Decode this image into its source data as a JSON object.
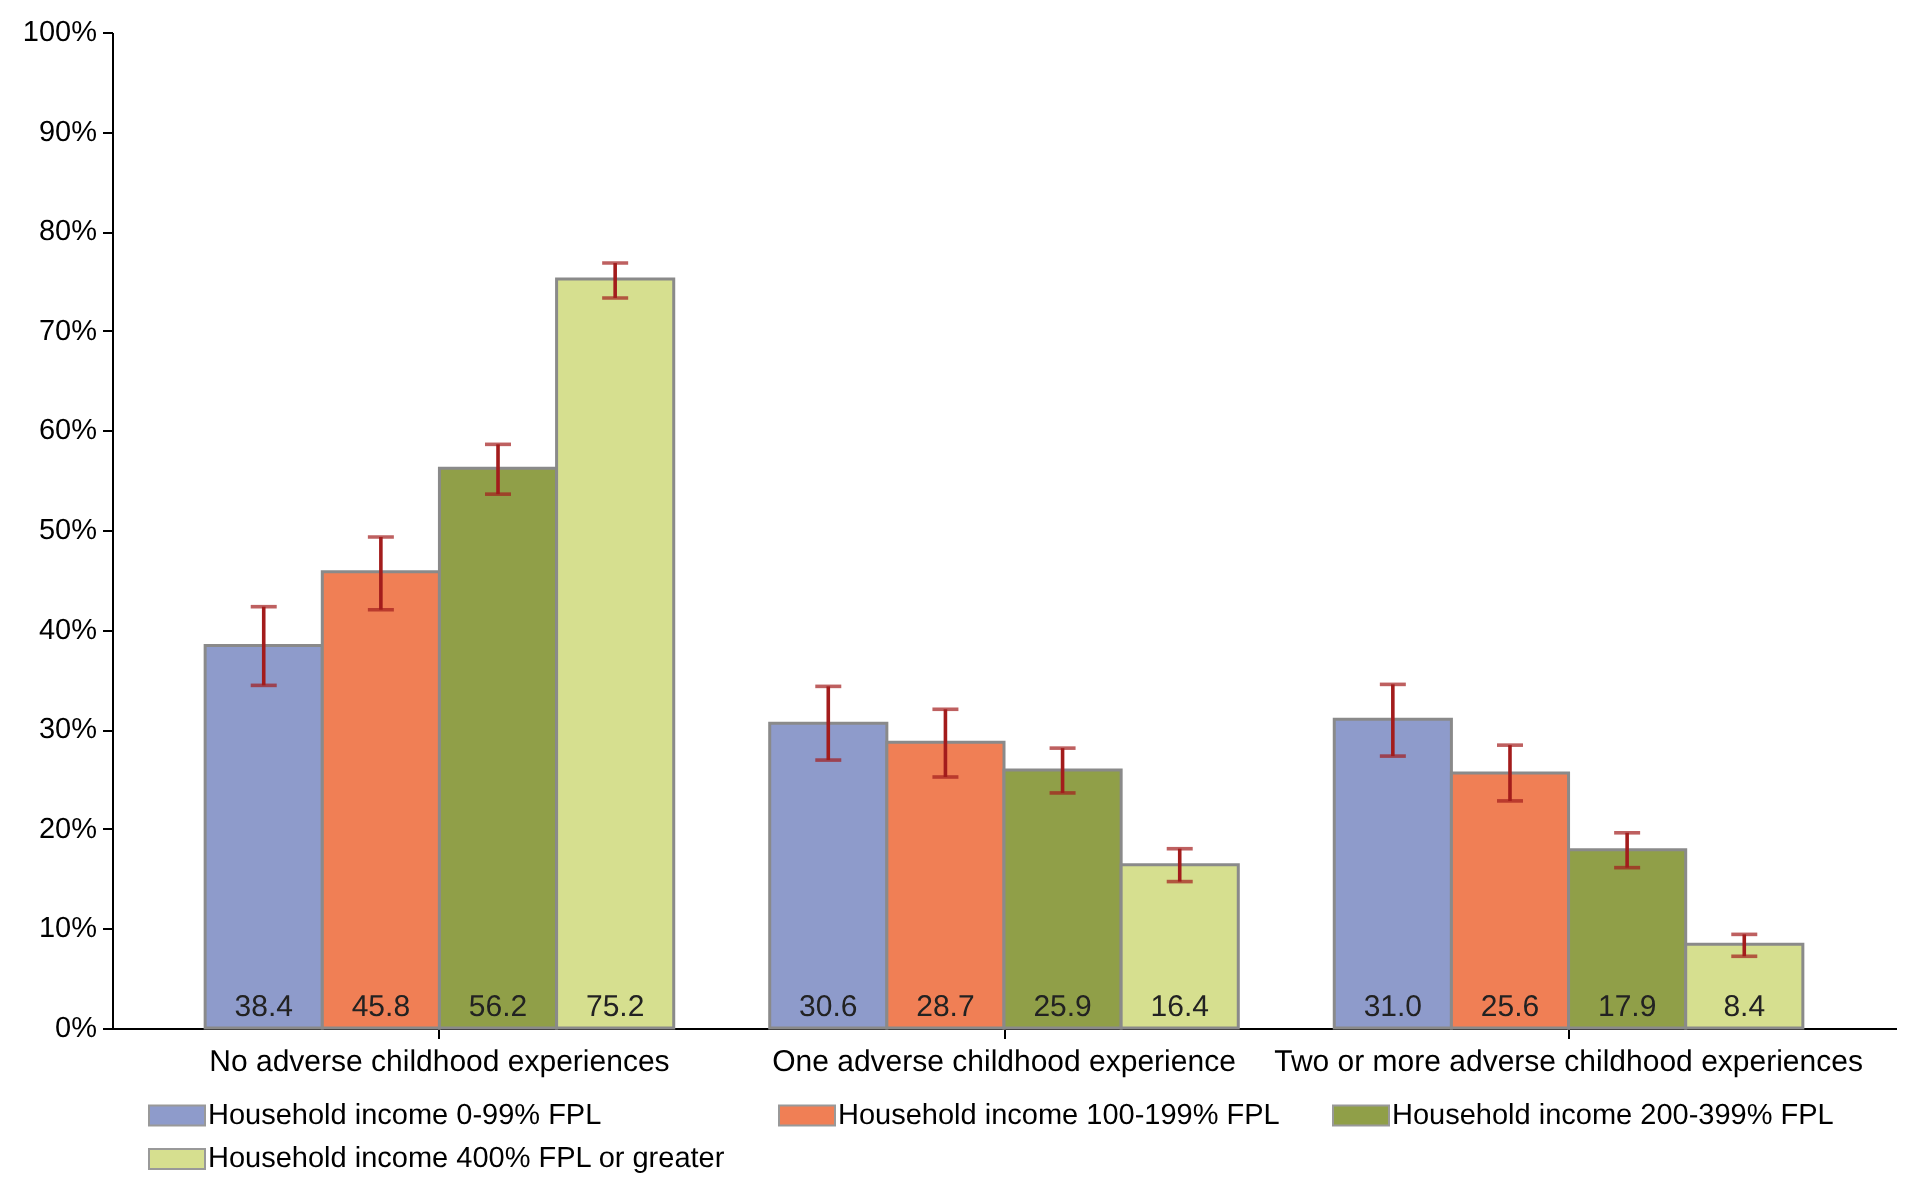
{
  "chart_data": {
    "type": "bar",
    "categories": [
      "No adverse childhood experiences",
      "One adverse childhood experience",
      "Two or more adverse childhood experiences"
    ],
    "series": [
      {
        "name": "Household income 0-99% FPL",
        "color": "#8e9bcb",
        "values": [
          38.4,
          30.6,
          31.0
        ],
        "value_labels": [
          "38.4",
          "30.6",
          "31.0"
        ],
        "errors": [
          [
            34.4,
            42.3
          ],
          [
            26.9,
            34.3
          ],
          [
            27.3,
            34.5
          ]
        ]
      },
      {
        "name": "Household income 100-199% FPL",
        "color": "#f07f55",
        "values": [
          45.8,
          28.7,
          25.6
        ],
        "value_labels": [
          "45.8",
          "28.7",
          "25.6"
        ],
        "errors": [
          [
            42.0,
            49.3
          ],
          [
            25.2,
            32.0
          ],
          [
            22.8,
            28.4
          ]
        ]
      },
      {
        "name": "Household income 200-399% FPL",
        "color": "#909f48",
        "values": [
          56.2,
          25.9,
          17.9
        ],
        "value_labels": [
          "56.2",
          "25.9",
          "17.9"
        ],
        "errors": [
          [
            53.6,
            58.6
          ],
          [
            23.6,
            28.1
          ],
          [
            16.1,
            19.6
          ]
        ]
      },
      {
        "name": "Household income 400% FPL or greater",
        "color": "#d6df8f",
        "values": [
          75.2,
          16.4,
          8.4
        ],
        "value_labels": [
          "75.2",
          "16.4",
          "8.4"
        ],
        "errors": [
          [
            73.3,
            76.8
          ],
          [
            14.7,
            18.0
          ],
          [
            7.2,
            9.4
          ]
        ]
      }
    ],
    "ylim": [
      0,
      100
    ],
    "yticks": [
      {
        "value": 0,
        "label": "0%"
      },
      {
        "value": 10,
        "label": "10%"
      },
      {
        "value": 20,
        "label": "20%"
      },
      {
        "value": 30,
        "label": "30%"
      },
      {
        "value": 40,
        "label": "40%"
      },
      {
        "value": 50,
        "label": "50%"
      },
      {
        "value": 60,
        "label": "60%"
      },
      {
        "value": 70,
        "label": "70%"
      },
      {
        "value": 80,
        "label": "80%"
      },
      {
        "value": 90,
        "label": "90%"
      },
      {
        "value": 100,
        "label": "100%"
      }
    ],
    "grid": false,
    "legend": "bottom"
  }
}
